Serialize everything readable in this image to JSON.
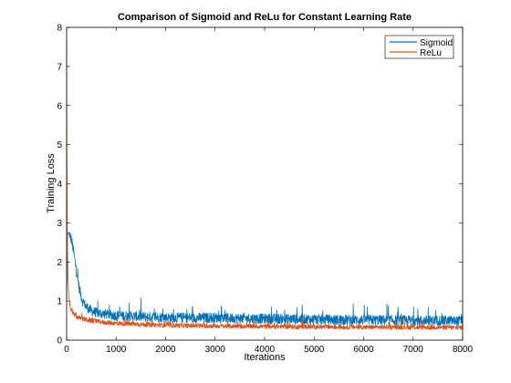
{
  "chart_data": {
    "type": "line",
    "title": "Comparison of Sigmoid and ReLu for Constant Learning Rate",
    "xlabel": "Iterations",
    "ylabel": "Training Loss",
    "xlim": [
      0,
      8000
    ],
    "ylim": [
      0,
      8
    ],
    "xticks": [
      0,
      1000,
      2000,
      3000,
      4000,
      5000,
      6000,
      7000,
      8000
    ],
    "yticks": [
      0,
      1,
      2,
      3,
      4,
      5,
      6,
      7,
      8
    ],
    "grid": false,
    "legend_position": "top-right",
    "series": [
      {
        "name": "Sigmoid",
        "color": "#0072BD",
        "noise": 0.13,
        "x": [
          0,
          20,
          60,
          100,
          150,
          200,
          260,
          320,
          400,
          500,
          600,
          700,
          800,
          1000,
          1200,
          1500,
          2000,
          2500,
          3000,
          3500,
          4000,
          4500,
          5000,
          5500,
          6000,
          6500,
          7000,
          7500,
          8000
        ],
        "y": [
          1.0,
          2.75,
          2.7,
          2.55,
          2.2,
          1.75,
          1.3,
          1.0,
          0.85,
          0.75,
          0.7,
          0.68,
          0.66,
          0.63,
          0.62,
          0.6,
          0.58,
          0.57,
          0.57,
          0.56,
          0.55,
          0.54,
          0.53,
          0.52,
          0.52,
          0.51,
          0.5,
          0.5,
          0.49
        ]
      },
      {
        "name": "ReLu",
        "color": "#D95319",
        "noise": 0.06,
        "x": [
          0,
          5,
          15,
          30,
          50,
          80,
          120,
          200,
          300,
          400,
          600,
          800,
          1000,
          1500,
          2000,
          3000,
          4000,
          5000,
          6000,
          7000,
          8000
        ],
        "y": [
          7.7,
          5.0,
          2.4,
          1.5,
          1.05,
          0.8,
          0.7,
          0.6,
          0.55,
          0.52,
          0.48,
          0.45,
          0.43,
          0.4,
          0.38,
          0.36,
          0.35,
          0.34,
          0.33,
          0.33,
          0.32
        ]
      }
    ]
  }
}
